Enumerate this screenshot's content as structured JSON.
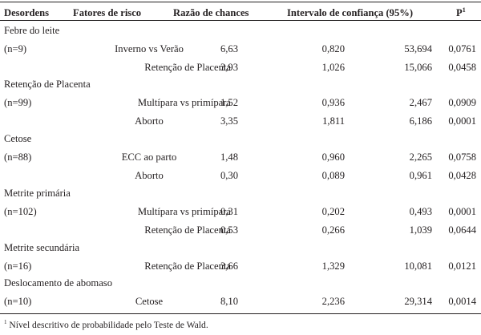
{
  "headers": {
    "disorders": "Desordens",
    "risk_factors": "Fatores de risco",
    "odds_ratio": "Razão de chances",
    "confidence_interval": "Intervalo de confiança (95%)",
    "p": "P",
    "p_sup": "1"
  },
  "groups": [
    {
      "name": "Febre do leite",
      "n": "(n=9)",
      "rows": [
        {
          "factor": "Inverno vs Verão",
          "or": "6,63",
          "ci_low": "0,820",
          "ci_high": "53,694",
          "p": "0,0761"
        },
        {
          "factor": "Retenção de Placenta",
          "or": "3,93",
          "ci_low": "1,026",
          "ci_high": "15,066",
          "p": "0,0458"
        }
      ]
    },
    {
      "name": "Retenção de Placenta",
      "n": "(n=99)",
      "rows": [
        {
          "factor": "Multípara vs primípara",
          "or": "1,52",
          "ci_low": "0,936",
          "ci_high": "2,467",
          "p": "0,0909"
        },
        {
          "factor": "Aborto",
          "or": "3,35",
          "ci_low": "1,811",
          "ci_high": "6,186",
          "p": "0,0001"
        }
      ]
    },
    {
      "name": "Cetose",
      "n": "(n=88)",
      "rows": [
        {
          "factor": "ECC ao parto",
          "or": "1,48",
          "ci_low": "0,960",
          "ci_high": "2,265",
          "p": "0,0758"
        },
        {
          "factor": "Aborto",
          "or": "0,30",
          "ci_low": "0,089",
          "ci_high": "0,961",
          "p": "0,0428"
        }
      ]
    },
    {
      "name": "Metrite primária",
      "n": "(n=102)",
      "rows": [
        {
          "factor": "Multípara vs primípara",
          "or": "0,31",
          "ci_low": "0,202",
          "ci_high": "0,493",
          "p": "0,0001"
        },
        {
          "factor": "Retenção de Placenta",
          "or": "0,53",
          "ci_low": "0,266",
          "ci_high": "1,039",
          "p": "0,0644"
        }
      ]
    },
    {
      "name": "Metrite secundária",
      "n": "(n=16)",
      "rows": [
        {
          "factor": "Retenção de Placenta",
          "or": "3,66",
          "ci_low": "1,329",
          "ci_high": "10,081",
          "p": "0,0121"
        }
      ]
    },
    {
      "name": "Deslocamento de abomaso",
      "n": "(n=10)",
      "rows": [
        {
          "factor": "Cetose",
          "or": "8,10",
          "ci_low": "2,236",
          "ci_high": "29,314",
          "p": "0,0014"
        }
      ]
    }
  ],
  "footnote": {
    "sup": "1",
    "text": "Nível descritivo de probabilidade pelo Teste de Wald."
  }
}
